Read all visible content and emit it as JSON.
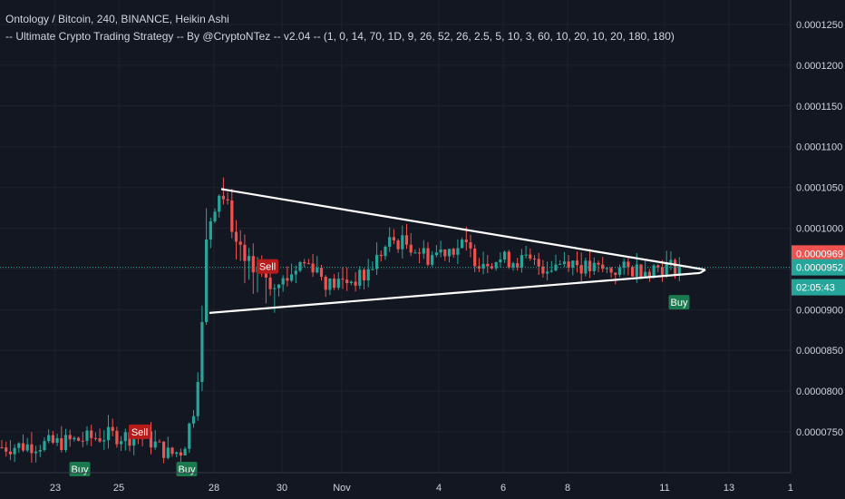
{
  "header": {
    "title": "Ontology / Bitcoin, 240, BINANCE, Heikin Ashi",
    "study": "-- Ultimate Crypto Trading Strategy -- By @CryptoNTez -- v2.04 -- (1, 0, 14, 70, 1D, 9, 26, 52, 26, 2.5, 5, 10, 3, 60, 10, 20, 10, 20, 180, 180)"
  },
  "colors": {
    "background": "#131722",
    "grid": "#1e222d",
    "text": "#d1d4dc",
    "up": "#26a69a",
    "down": "#ef5350",
    "trendline": "#ffffff",
    "price_line": "#26a69a",
    "sell_badge": "#b71c1c",
    "buy_badge": "#1b7a4d"
  },
  "chart_data": {
    "type": "candlestick",
    "x_ticks": [
      "23",
      "25",
      "28",
      "30",
      "Nov",
      "4",
      "6",
      "8",
      "11",
      "13",
      "1"
    ],
    "y_ticks": [
      "0.0001250",
      "0.0001200",
      "0.0001150",
      "0.0001100",
      "0.0001050",
      "0.0001000",
      "0.0000950",
      "0.0000900",
      "0.0000850",
      "0.0000800",
      "0.0000750"
    ],
    "ylim": [
      7.15e-05,
      0.0001265
    ],
    "price_labels": {
      "high_value": "0.0000969",
      "last_value": "0.0000952",
      "countdown": "02:05:43"
    },
    "signals": [
      {
        "label": "Sell",
        "type": "sell",
        "x": 154,
        "price": 7.59e-05
      },
      {
        "label": "Sell",
        "type": "sell",
        "x": 295,
        "price": 9.62e-05
      },
      {
        "label": "Buy",
        "type": "buy",
        "x": 88,
        "price": 7.14e-05
      },
      {
        "label": "Buy",
        "type": "buy",
        "x": 206,
        "price": 7.15e-05
      },
      {
        "label": "Buy",
        "type": "buy",
        "x": 749,
        "price": 9.18e-05
      }
    ],
    "trendlines": [
      {
        "name": "upper",
        "x1": 244,
        "p1": 0.0001048,
        "x2": 778,
        "p2": 9.49e-05
      },
      {
        "name": "lower",
        "x1": 231,
        "p1": 8.96e-05,
        "x2": 772,
        "p2": 9.45e-05
      }
    ],
    "price_path": [
      [
        0,
        7.31e-05
      ],
      [
        60,
        7.36e-05
      ],
      [
        120,
        7.46e-05
      ],
      [
        160,
        7.42e-05
      ],
      [
        185,
        7.22e-05
      ],
      [
        200,
        7.28e-05
      ],
      [
        212,
        7.8e-05
      ],
      [
        220,
        8.6e-05
      ],
      [
        226,
        9.9e-05
      ],
      [
        232,
        0.000102
      ],
      [
        240,
        0.0001045
      ],
      [
        248,
        0.000103
      ],
      [
        258,
        9.85e-05
      ],
      [
        268,
        9.55e-05
      ],
      [
        285,
        9.55e-05
      ],
      [
        300,
        9.25e-05
      ],
      [
        315,
        9.4e-05
      ],
      [
        330,
        9.58e-05
      ],
      [
        345,
        9.55e-05
      ],
      [
        360,
        9.3e-05
      ],
      [
        380,
        9.35e-05
      ],
      [
        400,
        9.4e-05
      ],
      [
        415,
        9.65e-05
      ],
      [
        430,
        9.85e-05
      ],
      [
        450,
        9.8e-05
      ],
      [
        470,
        9.65e-05
      ],
      [
        490,
        9.75e-05
      ],
      [
        510,
        9.78e-05
      ],
      [
        525,
        9.6e-05
      ],
      [
        545,
        9.62e-05
      ],
      [
        575,
        9.6e-05
      ],
      [
        600,
        9.52e-05
      ],
      [
        625,
        9.62e-05
      ],
      [
        645,
        9.5e-05
      ],
      [
        670,
        9.48e-05
      ],
      [
        700,
        9.5e-05
      ],
      [
        730,
        9.53e-05
      ],
      [
        750,
        9.52e-05
      ]
    ]
  }
}
